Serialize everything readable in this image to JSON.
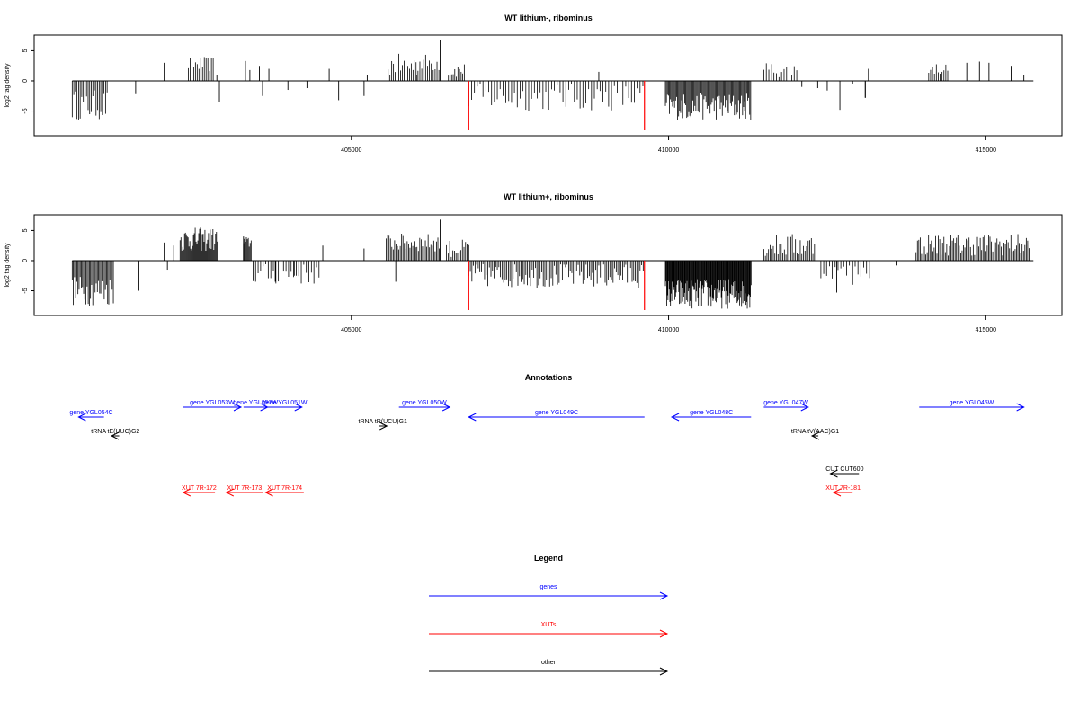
{
  "colors": {
    "gene": "#0000ff",
    "xut": "#ff0000",
    "other": "#000000",
    "highlight": "#ff0000"
  },
  "chart_data": [
    {
      "type": "bar",
      "title": "WT lithium-, ribominus",
      "ylabel": "log2 tag density",
      "xlim": [
        400000,
        416200
      ],
      "ylim": [
        -8.5,
        7
      ],
      "yticks": [
        5,
        0,
        -5
      ],
      "xticks": [
        405000,
        410000,
        415000
      ],
      "grid": false,
      "highlight_lines": [
        {
          "x": 406850,
          "y": -8.2,
          "color": "#ff0000"
        },
        {
          "x": 409620,
          "y": -8.2,
          "color": "#ff0000"
        }
      ],
      "blocks": [
        {
          "x": [
            400600,
            401170
          ],
          "y": [
            -6.5,
            -1.5
          ],
          "step": 25
        },
        {
          "x": [
            402430,
            402830
          ],
          "y": [
            1.5,
            4.0
          ],
          "step": 28
        },
        {
          "x": [
            405580,
            406030
          ],
          "y": [
            0.5,
            4.5
          ],
          "step": 28
        },
        {
          "x": [
            406020,
            406400
          ],
          "y": [
            1.5,
            4.5
          ],
          "step": 30
        },
        {
          "x": [
            406530,
            406800
          ],
          "y": [
            0.5,
            3.0
          ],
          "step": 25
        },
        {
          "x": [
            406850,
            409600
          ],
          "y": [
            -5.0,
            -0.4
          ],
          "step": 45
        },
        {
          "x": [
            409950,
            411300
          ],
          "y": [
            -6.5,
            -2.0
          ],
          "step": 16
        },
        {
          "x": [
            411500,
            412050
          ],
          "y": [
            0.5,
            3.2
          ],
          "step": 40
        },
        {
          "x": [
            414100,
            414400
          ],
          "y": [
            1.0,
            3.0
          ],
          "step": 30
        }
      ],
      "spikes": [
        [
          401600,
          -2.2
        ],
        [
          402050,
          3.0
        ],
        [
          402880,
          1.0
        ],
        [
          402920,
          -3.5
        ],
        [
          403330,
          3.3
        ],
        [
          403400,
          1.8
        ],
        [
          403550,
          2.5
        ],
        [
          403600,
          -2.5
        ],
        [
          403700,
          2.0
        ],
        [
          404000,
          -1.5
        ],
        [
          404300,
          -1.2
        ],
        [
          404650,
          2.0
        ],
        [
          404800,
          -3.2
        ],
        [
          405200,
          -2.5
        ],
        [
          405250,
          1.0
        ],
        [
          406400,
          6.8
        ],
        [
          408900,
          1.5
        ],
        [
          411200,
          -5.0
        ],
        [
          412100,
          -1.0
        ],
        [
          412350,
          -1.2
        ],
        [
          412500,
          -1.6
        ],
        [
          412700,
          -4.8
        ],
        [
          412900,
          -0.5
        ],
        [
          413100,
          -2.8
        ],
        [
          413100,
          -2.8
        ],
        [
          413150,
          2.0
        ],
        [
          414700,
          3.0
        ],
        [
          414900,
          3.2
        ],
        [
          415050,
          3.0
        ],
        [
          415400,
          2.5
        ],
        [
          415600,
          1.0
        ]
      ]
    },
    {
      "type": "bar",
      "title": "WT lithium+, ribominus",
      "ylabel": "log2 tag density",
      "xlim": [
        400000,
        416200
      ],
      "ylim": [
        -8.5,
        7
      ],
      "yticks": [
        5,
        0,
        -5
      ],
      "xticks": [
        405000,
        410000,
        415000
      ],
      "grid": false,
      "highlight_lines": [
        {
          "x": 406850,
          "y": -8.2,
          "color": "#ff0000"
        },
        {
          "x": 409620,
          "y": -8.2,
          "color": "#ff0000"
        }
      ],
      "blocks": [
        {
          "x": [
            400600,
            401250
          ],
          "y": [
            -7.5,
            -2.5
          ],
          "step": 18
        },
        {
          "x": [
            402300,
            402890
          ],
          "y": [
            1.5,
            5.5
          ],
          "step": 14
        },
        {
          "x": [
            403300,
            403420
          ],
          "y": [
            2.0,
            4.0
          ],
          "step": 15
        },
        {
          "x": [
            403450,
            404500
          ],
          "y": [
            -4.0,
            -0.5
          ],
          "step": 40
        },
        {
          "x": [
            405550,
            406400
          ],
          "y": [
            1.5,
            4.5
          ],
          "step": 22
        },
        {
          "x": [
            406500,
            406850
          ],
          "y": [
            0.5,
            3.5
          ],
          "step": 25
        },
        {
          "x": [
            406850,
            409600
          ],
          "y": [
            -4.5,
            -0.5
          ],
          "step": 25
        },
        {
          "x": [
            409950,
            411300
          ],
          "y": [
            -8.0,
            -3.0
          ],
          "step": 10
        },
        {
          "x": [
            411500,
            412300
          ],
          "y": [
            0.5,
            4.5
          ],
          "step": 25
        },
        {
          "x": [
            412400,
            413200
          ],
          "y": [
            -3.0,
            -0.5
          ],
          "step": 45
        },
        {
          "x": [
            413900,
            415700
          ],
          "y": [
            0.8,
            4.5
          ],
          "step": 22
        }
      ],
      "spikes": [
        [
          401650,
          -5.0
        ],
        [
          402050,
          3.0
        ],
        [
          402100,
          -1.5
        ],
        [
          402200,
          2.5
        ],
        [
          403300,
          4.0
        ],
        [
          403800,
          -3.5
        ],
        [
          404100,
          -2.5
        ],
        [
          404550,
          2.5
        ],
        [
          405200,
          2.0
        ],
        [
          405700,
          -3.5
        ],
        [
          406400,
          6.8
        ],
        [
          412650,
          -5.3
        ],
        [
          412900,
          -4.0
        ],
        [
          413600,
          -0.8
        ]
      ]
    }
  ],
  "panels": {
    "track1": {
      "title": "WT lithium-, ribominus",
      "ylabel": "log2 tag density"
    },
    "track2": {
      "title": "WT lithium+, ribominus",
      "ylabel": "log2 tag density"
    },
    "annotations": {
      "title": "Annotations",
      "features": [
        {
          "label": "gene YGL054C",
          "kind": "gene",
          "x1": 401100,
          "x2": 400700,
          "row": 1
        },
        {
          "label": "gene YGL053W",
          "kind": "gene",
          "x1": 402350,
          "x2": 403260,
          "row": 0
        },
        {
          "label": "gene YGL052W",
          "kind": "gene",
          "x1": 403300,
          "x2": 403680,
          "row": 0
        },
        {
          "label": "gene YGL051W",
          "kind": "gene",
          "x1": 403680,
          "x2": 404220,
          "row": 0
        },
        {
          "label": "gene YGL050W",
          "kind": "gene",
          "x1": 405750,
          "x2": 406550,
          "row": 0
        },
        {
          "label": "gene YGL049C",
          "kind": "gene",
          "x1": 409620,
          "x2": 406850,
          "row": 1
        },
        {
          "label": "gene YGL048C",
          "kind": "gene",
          "x1": 411300,
          "x2": 410050,
          "row": 1
        },
        {
          "label": "gene YGL047W",
          "kind": "gene",
          "x1": 411500,
          "x2": 412200,
          "row": 0
        },
        {
          "label": "gene YGL045W",
          "kind": "gene",
          "x1": 413950,
          "x2": 415600,
          "row": 0
        },
        {
          "label": "tRNA tE(UUC)G2",
          "kind": "other",
          "x1": 401340,
          "x2": 401220,
          "row": 2
        },
        {
          "label": "tRNA tR(UCU)G1",
          "kind": "other",
          "x1": 405430,
          "x2": 405560,
          "row": 1.5
        },
        {
          "label": "tRNA tV(AAC)G1",
          "kind": "other",
          "x1": 412360,
          "x2": 412260,
          "row": 2
        },
        {
          "label": "CUT CUT600",
          "kind": "other",
          "x1": 413000,
          "x2": 412550,
          "row": 3
        },
        {
          "label": "XUT 7R-172",
          "kind": "xut",
          "x1": 402850,
          "x2": 402350,
          "row": 4
        },
        {
          "label": "XUT 7R-173",
          "kind": "xut",
          "x1": 403600,
          "x2": 403030,
          "row": 4
        },
        {
          "label": "XUT 7R-174",
          "kind": "xut",
          "x1": 404250,
          "x2": 403650,
          "row": 4
        },
        {
          "label": "XUT 7R-181",
          "kind": "xut",
          "x1": 412900,
          "x2": 412600,
          "row": 4
        }
      ]
    },
    "legend": {
      "title": "Legend",
      "items": [
        {
          "label": "genes",
          "kind": "gene"
        },
        {
          "label": "XUTs",
          "kind": "xut"
        },
        {
          "label": "other",
          "kind": "other"
        }
      ]
    }
  }
}
